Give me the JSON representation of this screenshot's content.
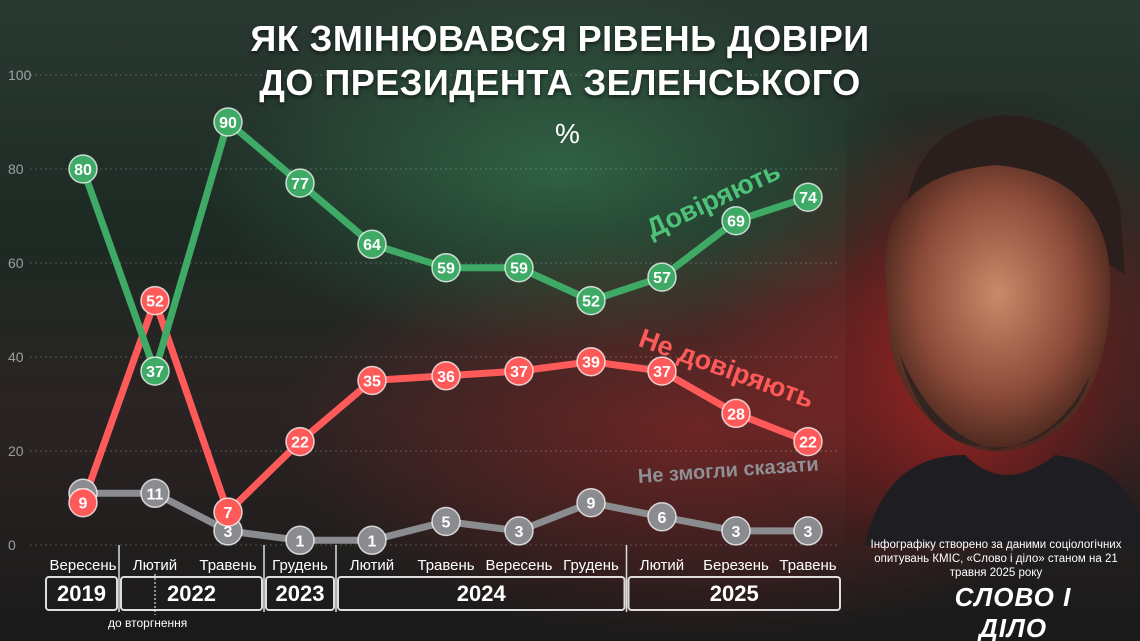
{
  "title_line1": "ЯК ЗМІНЮВАВСЯ РІВЕНЬ ДОВІРИ",
  "title_line2": "ДО ПРЕЗИДЕНТА ЗЕЛЕНСЬКОГО",
  "unit": "%",
  "note": "Інфографіку створено за даними соціологічних опитувань КМІС, «Слово і діло» станом на 21 травня 2025 року",
  "logo": "СЛОВО І ДІЛО",
  "invasion_label": "до вторгнення",
  "colors": {
    "trust": "#3faa66",
    "distrust": "#ff5a5a",
    "unsure": "#8a8c90"
  },
  "chart_data": {
    "type": "line",
    "title": "ЯК ЗМІНЮВАВСЯ РІВЕНЬ ДОВІРИ ДО ПРЕЗИДЕНТА ЗЕЛЕНСЬКОГО",
    "ylabel": "%",
    "ylim": [
      0,
      100
    ],
    "yticks": [
      0,
      20,
      40,
      60,
      80,
      100
    ],
    "grid": true,
    "categories": [
      "Вересень",
      "Лютий",
      "Травень",
      "Грудень",
      "Лютий",
      "Травень",
      "Вересень",
      "Грудень",
      "Лютий",
      "Березень",
      "Травень"
    ],
    "year_groups": [
      {
        "year": "2019",
        "start": 0,
        "end": 0
      },
      {
        "year": "2022",
        "start": 1,
        "end": 2
      },
      {
        "year": "2023",
        "start": 3,
        "end": 3
      },
      {
        "year": "2024",
        "start": 4,
        "end": 7
      },
      {
        "year": "2025",
        "start": 8,
        "end": 10
      }
    ],
    "series": [
      {
        "name": "Довіряють",
        "color": "#3faa66",
        "values": [
          80,
          37,
          90,
          77,
          64,
          59,
          59,
          52,
          57,
          69,
          74
        ]
      },
      {
        "name": "Не довіряють",
        "color": "#ff5a5a",
        "values": [
          9,
          52,
          7,
          22,
          35,
          36,
          37,
          39,
          37,
          28,
          22
        ]
      },
      {
        "name": "Не змогли сказати",
        "color": "#8a8c90",
        "values": [
          11,
          11,
          3,
          1,
          1,
          5,
          3,
          9,
          6,
          3,
          3
        ]
      }
    ]
  }
}
